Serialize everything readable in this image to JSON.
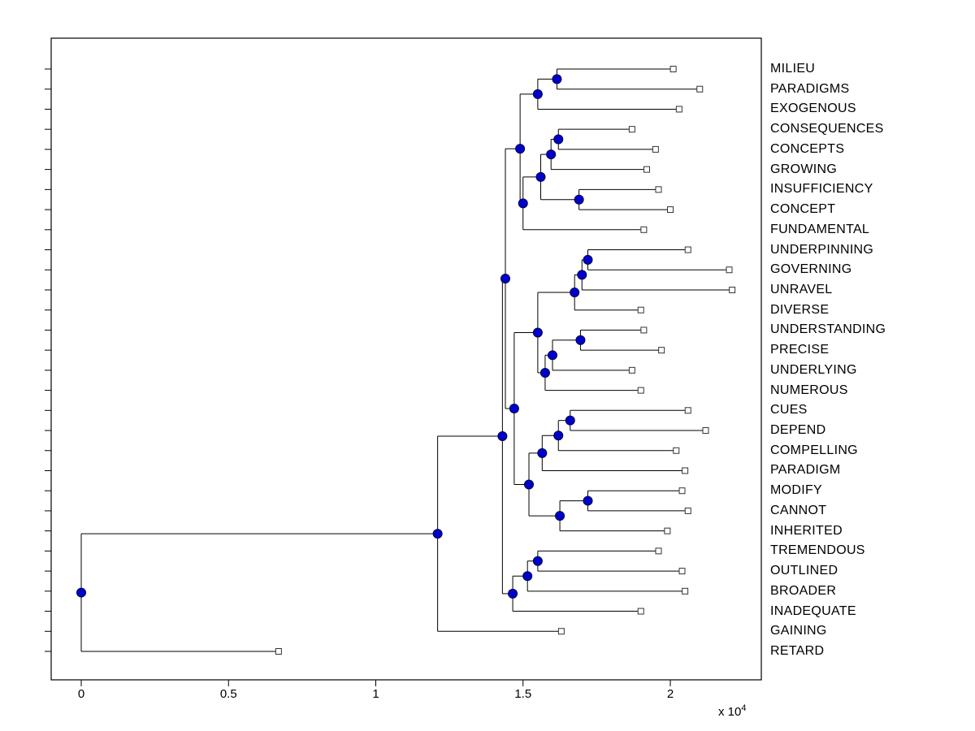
{
  "figure": {
    "background": "#ffffff"
  },
  "axis": {
    "tick_labels": [
      "0",
      "0.5",
      "1",
      "1.5",
      "2"
    ],
    "tick_values": [
      0,
      0.5,
      1,
      1.5,
      2
    ],
    "multiplier_label": "x 10",
    "multiplier_exponent": "4"
  },
  "chart_data": {
    "type": "dendrogram",
    "orientation": "horizontal-root-left",
    "title": "",
    "xlabel": "",
    "ylabel": "",
    "x_axis": {
      "ticks": [
        0,
        0.5,
        1,
        1.5,
        2
      ],
      "scale_label": "x 10^4",
      "range": [
        -0.1,
        2.31
      ],
      "grid": false
    },
    "styles": {
      "line_color": "#000000",
      "axis_color": "#000000",
      "node_fill": "#0000cc",
      "node_edge": "#000044",
      "leaf_marker_fill": "#ffffff",
      "leaf_marker_edge": "#333333"
    },
    "leaves": [
      {
        "label": "MILIEU",
        "distance": 2.01
      },
      {
        "label": "PARADIGMS",
        "distance": 2.1
      },
      {
        "label": "EXOGENOUS",
        "distance": 2.03
      },
      {
        "label": "CONSEQUENCES",
        "distance": 1.87
      },
      {
        "label": "CONCEPTS",
        "distance": 1.95
      },
      {
        "label": "GROWING",
        "distance": 1.92
      },
      {
        "label": "INSUFFICIENCY",
        "distance": 1.96
      },
      {
        "label": "CONCEPT",
        "distance": 2.0
      },
      {
        "label": "FUNDAMENTAL",
        "distance": 1.91
      },
      {
        "label": "UNDERPINNING",
        "distance": 2.06
      },
      {
        "label": "GOVERNING",
        "distance": 2.2
      },
      {
        "label": "UNRAVEL",
        "distance": 2.21
      },
      {
        "label": "DIVERSE",
        "distance": 1.9
      },
      {
        "label": "UNDERSTANDING",
        "distance": 1.91
      },
      {
        "label": "PRECISE",
        "distance": 1.97
      },
      {
        "label": "UNDERLYING",
        "distance": 1.87
      },
      {
        "label": "NUMEROUS",
        "distance": 1.9
      },
      {
        "label": "CUES",
        "distance": 2.06
      },
      {
        "label": "DEPEND",
        "distance": 2.12
      },
      {
        "label": "COMPELLING",
        "distance": 2.02
      },
      {
        "label": "PARADIGM",
        "distance": 2.05
      },
      {
        "label": "MODIFY",
        "distance": 2.04
      },
      {
        "label": "CANNOT",
        "distance": 2.06
      },
      {
        "label": "INHERITED",
        "distance": 1.99
      },
      {
        "label": "TREMENDOUS",
        "distance": 1.96
      },
      {
        "label": "OUTLINED",
        "distance": 2.04
      },
      {
        "label": "BROADER",
        "distance": 2.05
      },
      {
        "label": "INADEQUATE",
        "distance": 1.9
      },
      {
        "label": "GAINING",
        "distance": 1.63
      },
      {
        "label": "RETARD",
        "distance": 0.67
      }
    ],
    "tree": {
      "d": 0.0,
      "c": [
        {
          "d": 1.21,
          "c": [
            {
              "d": 1.43,
              "c": [
                {
                  "d": 1.44,
                  "c": [
                    {
                      "d": 1.49,
                      "c": [
                        {
                          "d": 1.55,
                          "c": [
                            {
                              "d": 1.615,
                              "c": [
                                "MILIEU",
                                "PARADIGMS"
                              ]
                            },
                            "EXOGENOUS"
                          ]
                        },
                        {
                          "d": 1.5,
                          "c": [
                            {
                              "d": 1.56,
                              "c": [
                                {
                                  "d": 1.595,
                                  "c": [
                                    {
                                      "d": 1.62,
                                      "c": [
                                        "CONSEQUENCES",
                                        "CONCEPTS"
                                      ]
                                    },
                                    "GROWING"
                                  ]
                                },
                                {
                                  "d": 1.69,
                                  "c": [
                                    "INSUFFICIENCY",
                                    "CONCEPT"
                                  ]
                                }
                              ]
                            },
                            "FUNDAMENTAL"
                          ]
                        }
                      ]
                    },
                    {
                      "d": 1.47,
                      "c": [
                        {
                          "d": 1.55,
                          "c": [
                            {
                              "d": 1.675,
                              "c": [
                                {
                                  "d": 1.7,
                                  "c": [
                                    {
                                      "d": 1.72,
                                      "c": [
                                        "UNDERPINNING",
                                        "GOVERNING"
                                      ]
                                    },
                                    "UNRAVEL"
                                  ]
                                },
                                "DIVERSE"
                              ]
                            },
                            {
                              "d": 1.575,
                              "c": [
                                {
                                  "d": 1.6,
                                  "c": [
                                    {
                                      "d": 1.695,
                                      "c": [
                                        "UNDERSTANDING",
                                        "PRECISE"
                                      ]
                                    },
                                    "UNDERLYING"
                                  ]
                                },
                                "NUMEROUS"
                              ]
                            }
                          ]
                        },
                        {
                          "d": 1.52,
                          "c": [
                            {
                              "d": 1.565,
                              "c": [
                                {
                                  "d": 1.62,
                                  "c": [
                                    {
                                      "d": 1.66,
                                      "c": [
                                        "CUES",
                                        "DEPEND"
                                      ]
                                    },
                                    "COMPELLING"
                                  ]
                                },
                                "PARADIGM"
                              ]
                            },
                            {
                              "d": 1.625,
                              "c": [
                                {
                                  "d": 1.72,
                                  "c": [
                                    "MODIFY",
                                    "CANNOT"
                                  ]
                                },
                                "INHERITED"
                              ]
                            }
                          ]
                        }
                      ]
                    }
                  ]
                },
                {
                  "d": 1.465,
                  "c": [
                    {
                      "d": 1.515,
                      "c": [
                        {
                          "d": 1.55,
                          "c": [
                            "TREMENDOUS",
                            "OUTLINED"
                          ]
                        },
                        "BROADER"
                      ]
                    },
                    "INADEQUATE"
                  ]
                }
              ]
            },
            "GAINING"
          ]
        },
        "RETARD"
      ]
    }
  }
}
